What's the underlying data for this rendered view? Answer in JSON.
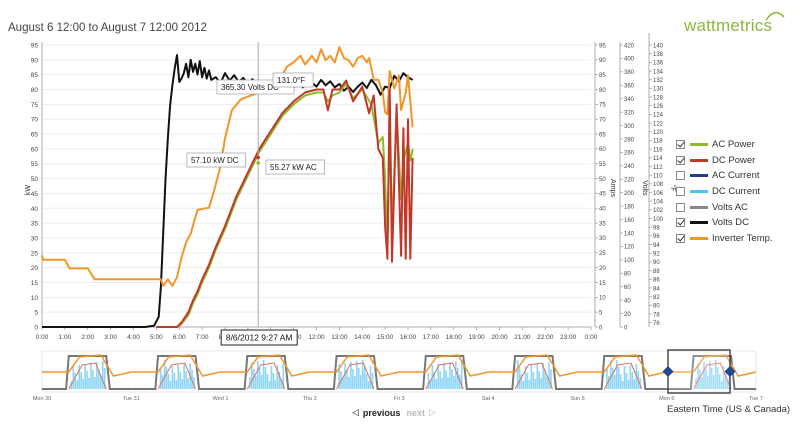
{
  "header": {
    "title": "August 6 12:00 to August 7 12:00 2012",
    "brand": "wattmetrics"
  },
  "chart_data": {
    "type": "line",
    "x_ticks": [
      "0:00",
      "1:00",
      "2:00",
      "3:00",
      "4:00",
      "5:00",
      "6:00",
      "7:00",
      "8:00",
      "9:00",
      "10:00",
      "11:00",
      "12:00",
      "13:00",
      "14:00",
      "15:00",
      "16:00",
      "17:00",
      "18:00",
      "19:00",
      "20:00",
      "21:00",
      "22:00",
      "23:00",
      "0:00"
    ],
    "xlim": [
      0,
      24
    ],
    "y_left": {
      "label": "kW",
      "lim": [
        0,
        95
      ],
      "ticks": [
        0,
        5,
        10,
        15,
        20,
        25,
        30,
        35,
        40,
        45,
        50,
        55,
        60,
        65,
        70,
        75,
        80,
        85,
        90,
        95
      ]
    },
    "y_amps": {
      "label": "Amps",
      "lim": [
        0,
        95
      ],
      "ticks": [
        0,
        5,
        10,
        15,
        20,
        25,
        30,
        35,
        40,
        45,
        50,
        55,
        60,
        65,
        70,
        75,
        80,
        85,
        90,
        95
      ]
    },
    "y_volts": {
      "label": "Volts",
      "lim": [
        0,
        420
      ],
      "ticks": [
        0,
        20,
        40,
        60,
        80,
        100,
        120,
        140,
        160,
        180,
        200,
        220,
        240,
        260,
        280,
        300,
        320,
        340,
        360,
        380,
        400,
        420
      ]
    },
    "y_temp": {
      "label": "°F",
      "lim": [
        75,
        140
      ],
      "ticks": [
        76,
        78,
        80,
        82,
        84,
        86,
        88,
        90,
        92,
        94,
        96,
        98,
        100,
        102,
        104,
        106,
        108,
        110,
        112,
        114,
        116,
        118,
        120,
        122,
        124,
        126,
        128,
        130,
        132,
        134,
        136,
        138,
        140
      ]
    },
    "series": [
      {
        "name": "Volts DC",
        "color": "#111111",
        "axis": "volts",
        "points": [
          [
            0,
            0
          ],
          [
            1,
            0
          ],
          [
            2,
            0
          ],
          [
            3,
            0
          ],
          [
            4,
            0
          ],
          [
            4.5,
            0
          ],
          [
            4.9,
            2
          ],
          [
            5.1,
            15
          ],
          [
            5.2,
            60
          ],
          [
            5.3,
            140
          ],
          [
            5.4,
            220
          ],
          [
            5.5,
            280
          ],
          [
            5.6,
            330
          ],
          [
            5.7,
            360
          ],
          [
            5.8,
            385
          ],
          [
            5.9,
            405
          ],
          [
            6.0,
            365
          ],
          [
            6.1,
            370
          ],
          [
            6.2,
            378
          ],
          [
            6.3,
            392
          ],
          [
            6.4,
            372
          ],
          [
            6.5,
            398
          ],
          [
            6.6,
            380
          ],
          [
            6.7,
            392
          ],
          [
            6.8,
            376
          ],
          [
            6.9,
            396
          ],
          [
            7.0,
            372
          ],
          [
            7.1,
            386
          ],
          [
            7.2,
            370
          ],
          [
            7.3,
            382
          ],
          [
            7.4,
            368
          ],
          [
            7.6,
            372
          ],
          [
            7.8,
            363
          ],
          [
            8.0,
            378
          ],
          [
            8.2,
            367
          ],
          [
            8.4,
            375
          ],
          [
            8.6,
            365
          ],
          [
            8.8,
            371
          ],
          [
            9.0,
            362
          ],
          [
            9.2,
            369
          ],
          [
            9.4,
            362
          ],
          [
            9.6,
            366
          ],
          [
            9.8,
            361
          ],
          [
            10.0,
            362
          ],
          [
            10.2,
            359
          ],
          [
            10.4,
            363
          ],
          [
            10.6,
            356
          ],
          [
            10.8,
            362
          ],
          [
            11.0,
            357
          ],
          [
            11.2,
            362
          ],
          [
            11.4,
            357
          ],
          [
            11.6,
            362
          ],
          [
            11.8,
            364
          ],
          [
            12.0,
            358
          ],
          [
            12.2,
            368
          ],
          [
            12.4,
            360
          ],
          [
            12.6,
            366
          ],
          [
            12.8,
            357
          ],
          [
            13.0,
            362
          ],
          [
            13.2,
            352
          ],
          [
            13.4,
            358
          ],
          [
            13.6,
            350
          ],
          [
            13.8,
            358
          ],
          [
            14.0,
            364
          ],
          [
            14.2,
            356
          ],
          [
            14.4,
            368
          ],
          [
            14.6,
            360
          ],
          [
            14.8,
            346
          ],
          [
            15.0,
            358
          ],
          [
            15.2,
            356
          ],
          [
            15.4,
            374
          ],
          [
            15.6,
            366
          ],
          [
            15.8,
            378
          ],
          [
            16.0,
            372
          ],
          [
            16.2,
            368
          ]
        ]
      },
      {
        "name": "Inverter Temp.",
        "color": "#f0962a",
        "axis": "temp",
        "points": [
          [
            0,
            91.5
          ],
          [
            0.05,
            90.5
          ],
          [
            1,
            90.5
          ],
          [
            1.2,
            88.5
          ],
          [
            2,
            88.5
          ],
          [
            2.3,
            86
          ],
          [
            5.2,
            86
          ],
          [
            5.3,
            84.5
          ],
          [
            5.5,
            86
          ],
          [
            5.7,
            84.5
          ],
          [
            5.9,
            86.5
          ],
          [
            6.1,
            91
          ],
          [
            6.3,
            94.5
          ],
          [
            6.5,
            96.5
          ],
          [
            6.8,
            102
          ],
          [
            7.3,
            102.5
          ],
          [
            7.5,
            106
          ],
          [
            7.8,
            112
          ],
          [
            8.0,
            118.5
          ],
          [
            8.3,
            125
          ],
          [
            8.7,
            127.5
          ],
          [
            9.2,
            128.5
          ],
          [
            9.8,
            129.5
          ],
          [
            10.3,
            131
          ],
          [
            10.7,
            135
          ],
          [
            11.0,
            136
          ],
          [
            11.3,
            137.5
          ],
          [
            11.5,
            135.5
          ],
          [
            11.8,
            137.5
          ],
          [
            12.0,
            136
          ],
          [
            12.2,
            139
          ],
          [
            12.4,
            136.5
          ],
          [
            12.6,
            137.5
          ],
          [
            12.8,
            136
          ],
          [
            13.0,
            139.5
          ],
          [
            13.2,
            137
          ],
          [
            13.4,
            136.5
          ],
          [
            13.6,
            135
          ],
          [
            13.8,
            137
          ],
          [
            14.0,
            137.5
          ],
          [
            14.2,
            136
          ],
          [
            14.3,
            137
          ],
          [
            14.5,
            132
          ],
          [
            14.7,
            132
          ],
          [
            14.9,
            129
          ],
          [
            15.0,
            124.5
          ],
          [
            15.1,
            124
          ],
          [
            15.2,
            134
          ],
          [
            15.4,
            130
          ],
          [
            15.6,
            133
          ],
          [
            15.7,
            125
          ],
          [
            15.9,
            129
          ],
          [
            16.0,
            133
          ],
          [
            16.1,
            127
          ],
          [
            16.2,
            121
          ]
        ]
      },
      {
        "name": "AC Power",
        "color": "#8dbb2a",
        "axis": "kw",
        "points": [
          [
            5.0,
            0
          ],
          [
            5.9,
            0
          ],
          [
            6.1,
            1
          ],
          [
            6.4,
            4
          ],
          [
            6.6,
            8
          ],
          [
            6.8,
            11
          ],
          [
            7.0,
            15
          ],
          [
            7.3,
            20
          ],
          [
            7.6,
            26
          ],
          [
            8.0,
            33
          ],
          [
            8.5,
            43
          ],
          [
            9.0,
            51
          ],
          [
            9.5,
            59
          ],
          [
            10.0,
            65
          ],
          [
            10.5,
            71
          ],
          [
            11.0,
            75
          ],
          [
            11.5,
            78
          ],
          [
            12.0,
            79
          ],
          [
            12.3,
            79
          ],
          [
            12.5,
            76
          ],
          [
            12.7,
            78
          ],
          [
            13.0,
            79
          ],
          [
            13.3,
            82
          ],
          [
            13.6,
            77
          ],
          [
            14.0,
            80
          ],
          [
            14.4,
            75
          ],
          [
            14.7,
            62
          ],
          [
            14.9,
            64
          ],
          [
            15.0,
            50
          ],
          [
            15.1,
            26
          ],
          [
            15.2,
            72
          ],
          [
            15.3,
            32
          ],
          [
            15.5,
            72
          ],
          [
            15.7,
            43
          ],
          [
            15.8,
            56
          ],
          [
            16.0,
            62
          ],
          [
            16.1,
            56
          ],
          [
            16.2,
            60
          ]
        ]
      },
      {
        "name": "DC Power",
        "color": "#c0392b",
        "axis": "kw",
        "points": [
          [
            5.0,
            0
          ],
          [
            5.9,
            0
          ],
          [
            6.1,
            1.5
          ],
          [
            6.4,
            5
          ],
          [
            6.6,
            9
          ],
          [
            6.8,
            12
          ],
          [
            7.0,
            16
          ],
          [
            7.3,
            21
          ],
          [
            7.6,
            27
          ],
          [
            8.0,
            34
          ],
          [
            8.5,
            44
          ],
          [
            9.0,
            52
          ],
          [
            9.5,
            60
          ],
          [
            10.0,
            66
          ],
          [
            10.5,
            72
          ],
          [
            11.0,
            76
          ],
          [
            11.5,
            79
          ],
          [
            12.0,
            80
          ],
          [
            12.3,
            80
          ],
          [
            12.5,
            73
          ],
          [
            12.7,
            80
          ],
          [
            13.0,
            80
          ],
          [
            13.3,
            83
          ],
          [
            13.6,
            76
          ],
          [
            14.0,
            81
          ],
          [
            14.3,
            72
          ],
          [
            14.5,
            78
          ],
          [
            14.7,
            60
          ],
          [
            14.9,
            57
          ],
          [
            15.0,
            34
          ],
          [
            15.1,
            23
          ],
          [
            15.2,
            80
          ],
          [
            15.3,
            22
          ],
          [
            15.5,
            75
          ],
          [
            15.7,
            24
          ],
          [
            15.8,
            67
          ],
          [
            15.9,
            23
          ],
          [
            16.0,
            70
          ],
          [
            16.1,
            23
          ],
          [
            16.2,
            57
          ]
        ]
      }
    ],
    "cursor": {
      "x": 9.45,
      "label": "8/6/2012 9:27 AM"
    },
    "tooltips": [
      {
        "text": "365.30 Volts DC"
      },
      {
        "text": "131.0°F"
      },
      {
        "text": "57.10 kW DC"
      },
      {
        "text": "55.27 kW AC"
      }
    ]
  },
  "overview": {
    "labels": [
      "Mon 30",
      "Tue 31",
      "Wed 1",
      "Thu 2",
      "Fri 3",
      "Sat 4",
      "Sun 5",
      "Mon 6",
      "Tue 7"
    ]
  },
  "legend": [
    {
      "label": "AC Power",
      "color": "#8dbb2a",
      "checked": true
    },
    {
      "label": "DC Power",
      "color": "#c0392b",
      "checked": true
    },
    {
      "label": "AC Current",
      "color": "#1f3f8f",
      "checked": false
    },
    {
      "label": "DC Current",
      "color": "#4fc3f7",
      "checked": false
    },
    {
      "label": "Volts AC",
      "color": "#888888",
      "checked": false
    },
    {
      "label": "Volts DC",
      "color": "#111111",
      "checked": true
    },
    {
      "label": "Inverter Temp.",
      "color": "#f0962a",
      "checked": true
    }
  ],
  "nav": {
    "previous": "previous",
    "next": "next"
  },
  "timezone": "Eastern Time (US & Canada)"
}
